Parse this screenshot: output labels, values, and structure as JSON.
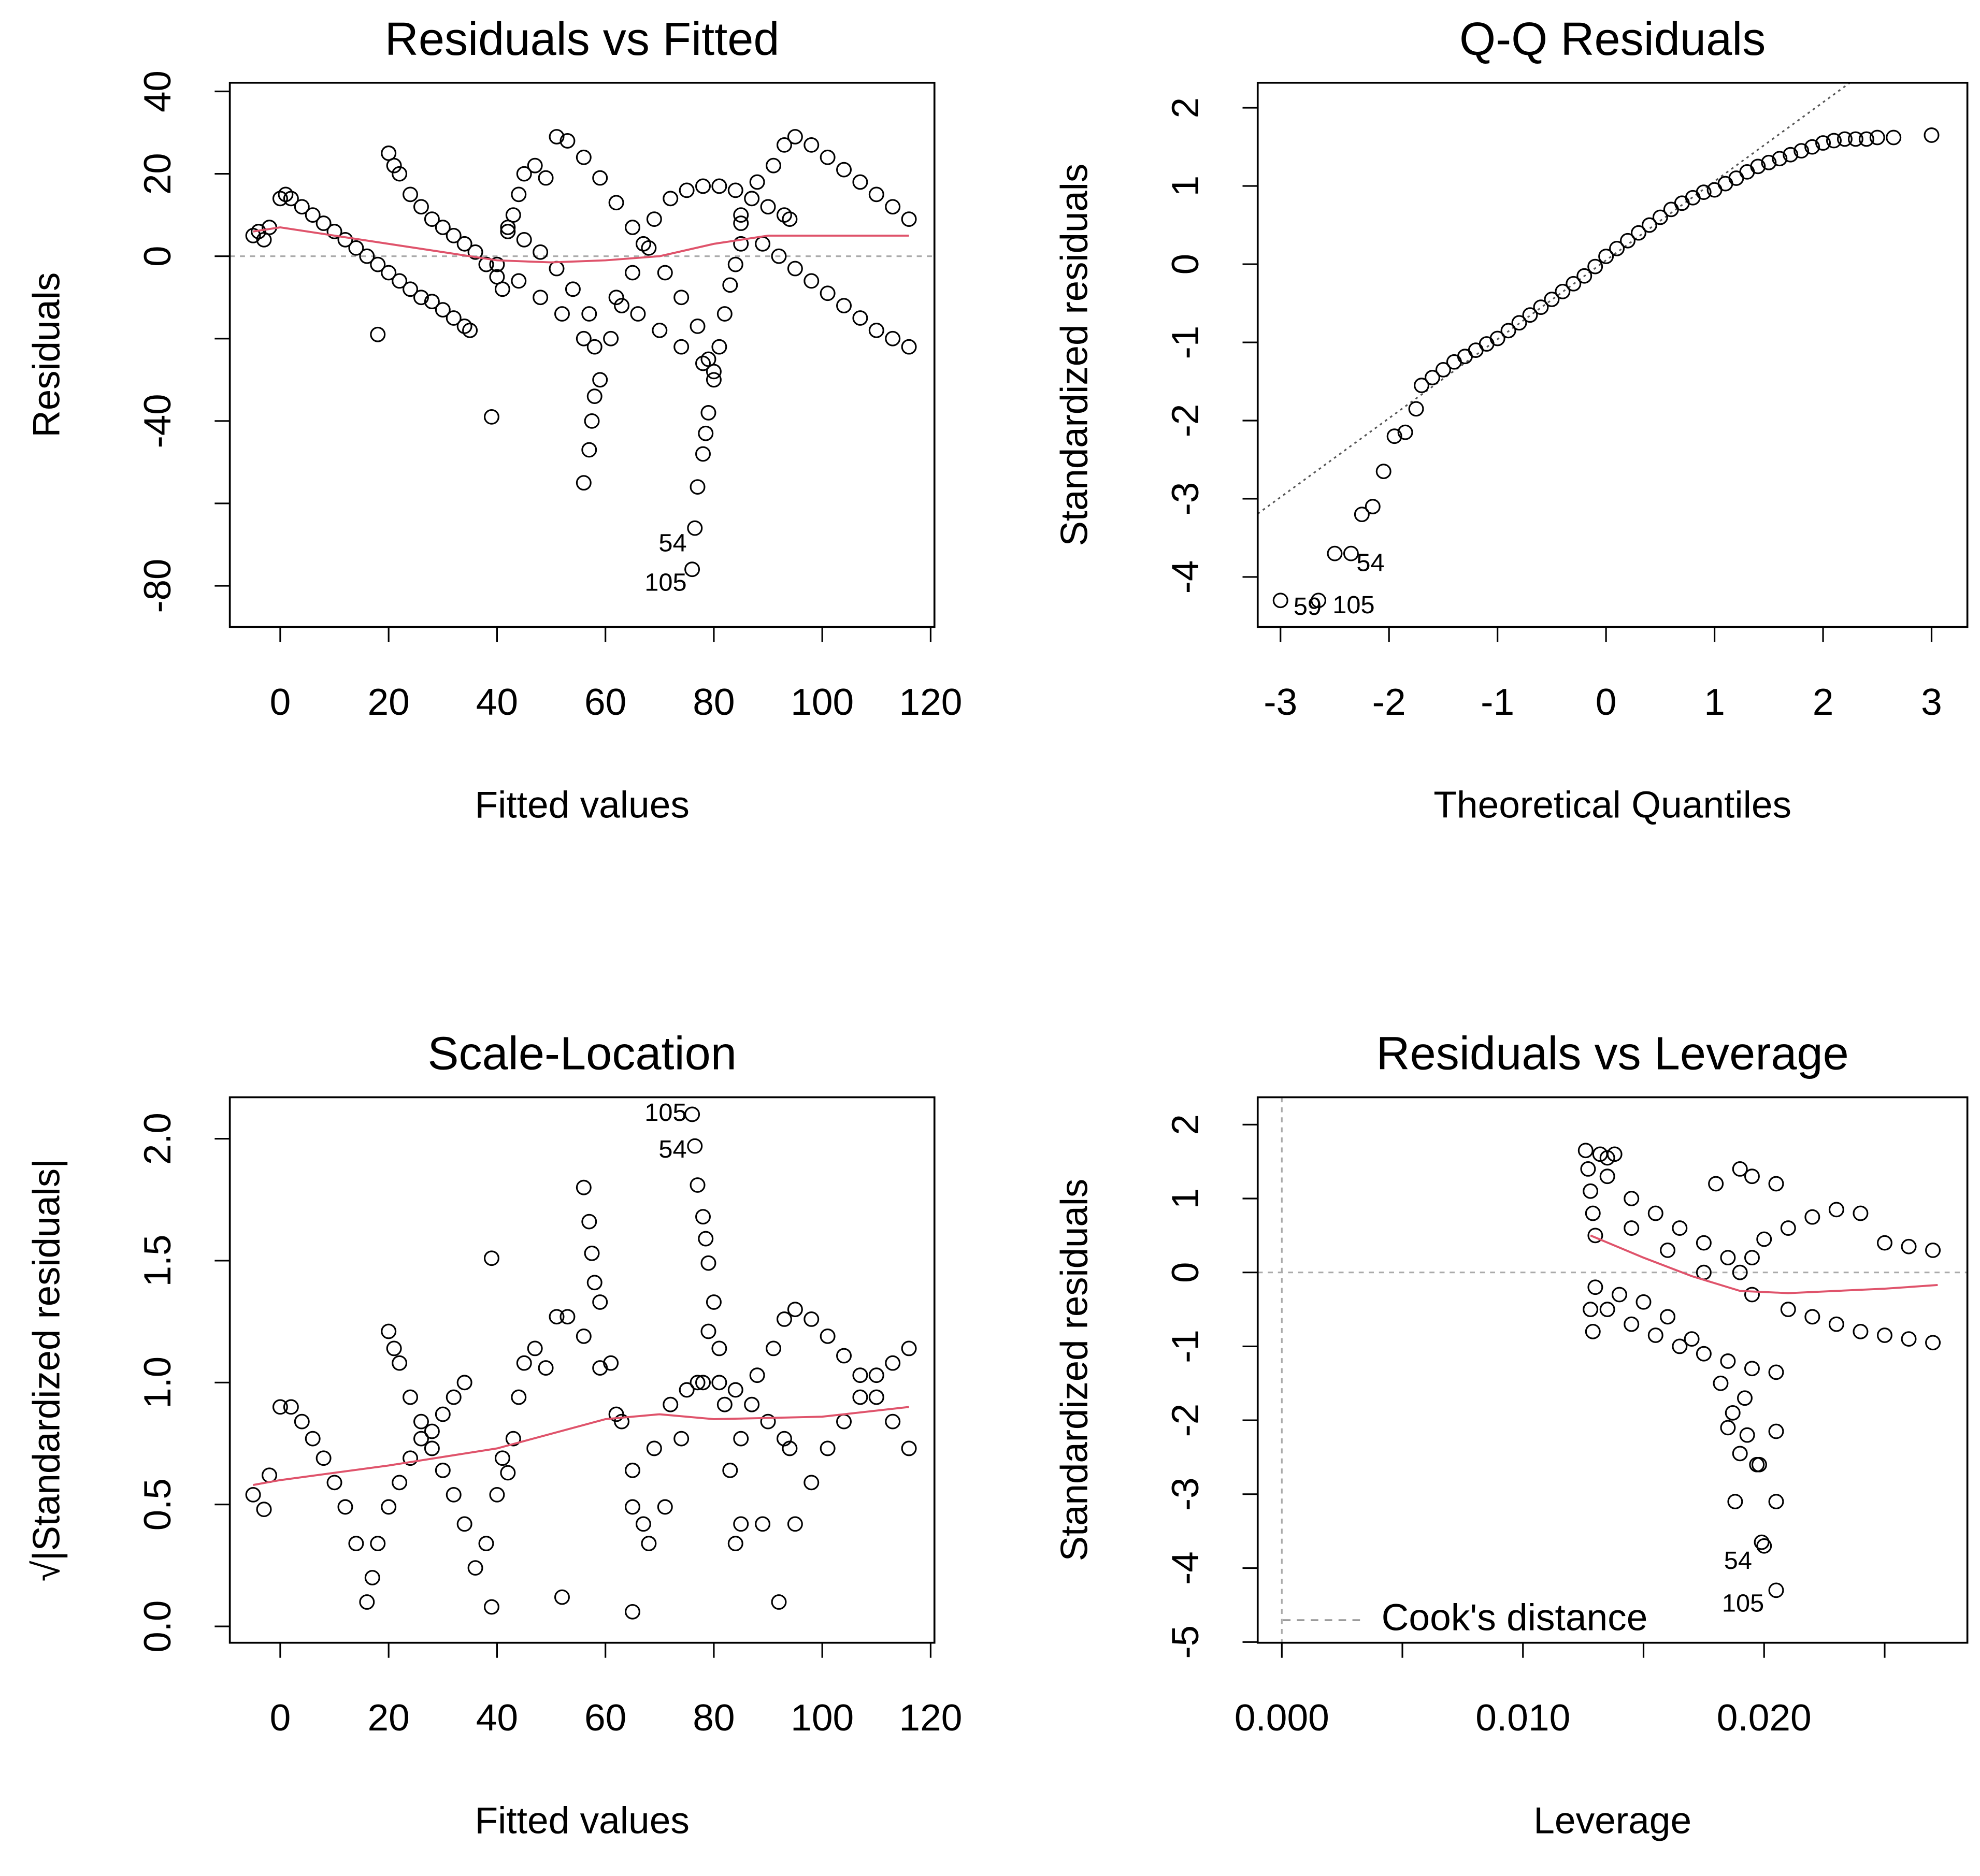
{
  "chart_data": [
    {
      "type": "scatter",
      "title": "Residuals vs Fitted",
      "xlabel": "Fitted values",
      "ylabel": "Residuals",
      "color": "#000000",
      "xlim": [
        -9.3,
        120.7
      ],
      "ylim": [
        -90,
        42.1
      ],
      "xticks": [
        0,
        20,
        40,
        60,
        80,
        100,
        120
      ],
      "yticks": [
        -80,
        -40,
        0,
        20,
        40
      ],
      "minor_yticks": [
        -60,
        -20
      ],
      "hline": 0,
      "annotation_anchor": "end",
      "annotations": [
        {
          "text": "54",
          "x": 75,
          "y": -70
        },
        {
          "text": "105",
          "x": 75,
          "y": -79.6
        }
      ],
      "smooth": {
        "color": "#df536b",
        "x": [
          -5,
          0,
          10,
          20,
          30,
          40,
          50,
          60,
          70,
          80,
          90,
          100,
          116
        ],
        "values": [
          6,
          7,
          5,
          3,
          1,
          -1,
          -1.5,
          -1,
          0,
          3,
          5,
          5,
          5
        ]
      },
      "x": [
        -5,
        -4,
        -3,
        -2,
        0,
        1,
        2,
        4,
        6,
        8,
        10,
        12,
        14,
        16,
        18,
        20,
        22,
        24,
        26,
        28,
        30,
        32,
        34,
        35,
        18,
        20,
        21,
        22,
        24,
        26,
        28,
        30,
        32,
        34,
        36,
        38,
        39,
        40,
        41,
        42,
        43,
        44,
        45,
        47,
        49,
        42,
        45,
        48,
        51,
        54,
        57,
        58,
        40,
        44,
        48,
        52,
        56,
        51,
        53,
        56,
        59,
        62,
        65,
        68,
        71,
        74,
        77,
        79,
        62,
        66,
        70,
        74,
        78,
        80,
        56,
        57,
        57.5,
        58,
        59,
        61,
        63,
        65,
        67,
        69,
        72,
        75,
        78,
        81,
        84,
        87,
        90,
        93,
        94,
        76,
        76.5,
        77,
        78,
        78.5,
        79,
        80,
        81,
        82,
        83,
        84,
        85,
        85,
        88,
        91,
        93,
        95,
        98,
        101,
        104,
        107,
        110,
        113,
        116,
        85,
        89,
        92,
        95,
        98,
        101,
        104,
        107,
        110,
        113,
        116
      ],
      "values": [
        5,
        6,
        4,
        7,
        14,
        15,
        14,
        12,
        10,
        8,
        6,
        4,
        2,
        0,
        -2,
        -4,
        -6,
        -8,
        -10,
        -11,
        -13,
        -15,
        -17,
        -18,
        -19,
        25,
        22,
        20,
        15,
        12,
        9,
        7,
        5,
        3,
        1,
        -2,
        -39,
        -5,
        -8,
        6,
        10,
        15,
        20,
        22,
        19,
        7,
        4,
        1,
        -3,
        -8,
        -14,
        -22,
        -2,
        -6,
        -10,
        -14,
        -20,
        29,
        28,
        24,
        19,
        13,
        7,
        2,
        -4,
        -10,
        -17,
        -25,
        -10,
        -14,
        -18,
        -22,
        -26,
        -28,
        -55,
        -47,
        -40,
        -34,
        -30,
        -20,
        -12,
        -4,
        3,
        9,
        14,
        16,
        17,
        17,
        16,
        14,
        12,
        10,
        9,
        -76,
        -66,
        -56,
        -48,
        -43,
        -38,
        -30,
        -22,
        -14,
        -7,
        -2,
        3,
        10,
        18,
        22,
        27,
        29,
        27,
        24,
        21,
        18,
        15,
        12,
        9,
        8,
        3,
        0,
        -3,
        -6,
        -9,
        -12,
        -15,
        -18,
        -20,
        -22
      ]
    },
    {
      "type": "scatter",
      "title": "Q-Q Residuals",
      "xlabel": "Theoretical Quantiles",
      "ylabel": "Standardized residuals",
      "color": "#000000",
      "xlim": [
        -3.21,
        3.33
      ],
      "ylim": [
        -4.64,
        2.32
      ],
      "xticks": [
        -3,
        -2,
        -1,
        0,
        1,
        2,
        3
      ],
      "yticks": [
        -4,
        -3,
        -2,
        -1,
        0,
        1,
        2
      ],
      "qq_line": {
        "intercept": 0.05,
        "slope": 1.01
      },
      "annotation_anchor": "start",
      "annotations": [
        {
          "text": "54",
          "x": -2.3,
          "y": -3.84
        },
        {
          "text": "59",
          "x": -2.88,
          "y": -4.4
        },
        {
          "text": "105",
          "x": -2.52,
          "y": -4.38
        }
      ],
      "x": [
        -3,
        -2.65,
        -2.5,
        -2.35,
        -2.25,
        -2.15,
        -2.05,
        -1.95,
        -1.85,
        -1.75,
        -1.7,
        -1.6,
        -1.5,
        -1.4,
        -1.3,
        -1.2,
        -1.1,
        -1,
        -0.9,
        -0.8,
        -0.7,
        -0.6,
        -0.5,
        -0.4,
        -0.3,
        -0.2,
        -0.1,
        0,
        0.1,
        0.2,
        0.3,
        0.4,
        0.5,
        0.6,
        0.7,
        0.8,
        0.9,
        1,
        1.1,
        1.2,
        1.3,
        1.4,
        1.5,
        1.6,
        1.7,
        1.8,
        1.9,
        2,
        2.1,
        2.2,
        2.3,
        2.4,
        2.5,
        2.65,
        3
      ],
      "values": [
        -4.3,
        -4.3,
        -3.7,
        -3.7,
        -3.2,
        -3.1,
        -2.65,
        -2.2,
        -2.15,
        -1.85,
        -1.55,
        -1.45,
        -1.35,
        -1.25,
        -1.18,
        -1.1,
        -1.02,
        -0.95,
        -0.85,
        -0.75,
        -0.65,
        -0.55,
        -0.45,
        -0.35,
        -0.25,
        -0.15,
        -0.03,
        0.1,
        0.2,
        0.3,
        0.4,
        0.5,
        0.6,
        0.7,
        0.78,
        0.85,
        0.92,
        0.95,
        1.03,
        1.1,
        1.18,
        1.25,
        1.3,
        1.35,
        1.4,
        1.45,
        1.5,
        1.55,
        1.58,
        1.6,
        1.6,
        1.6,
        1.62,
        1.62,
        1.65
      ]
    },
    {
      "type": "scatter",
      "title": "Scale-Location",
      "xlabel": "Fitted values",
      "ylabel": "√|Standardized residuals|",
      "color": "#000000",
      "xlim": [
        -9.3,
        120.7
      ],
      "ylim": [
        -0.067,
        2.17
      ],
      "xticks": [
        0,
        20,
        40,
        60,
        80,
        100,
        120
      ],
      "yticks": [
        {
          "value": 0,
          "label": "0.0"
        },
        0.5,
        {
          "value": 1,
          "label": "1.0"
        },
        1.5,
        {
          "value": 2,
          "label": "2.0"
        }
      ],
      "annotation_anchor": "end",
      "annotations": [
        {
          "text": "105",
          "x": 75,
          "y": 2.1
        },
        {
          "text": "54",
          "x": 75,
          "y": 1.95
        }
      ],
      "smooth": {
        "color": "#df536b",
        "x": [
          -5,
          0,
          20,
          40,
          60,
          70,
          80,
          100,
          116
        ],
        "values": [
          0.58,
          0.6,
          0.66,
          0.73,
          0.85,
          0.87,
          0.85,
          0.86,
          0.9
        ]
      },
      "x": [
        -5,
        -3,
        -2,
        0,
        2,
        4,
        6,
        8,
        10,
        12,
        14,
        16,
        18,
        20,
        22,
        24,
        26,
        28,
        30,
        32,
        34,
        17,
        20,
        21,
        22,
        24,
        26,
        28,
        30,
        32,
        34,
        36,
        38,
        39,
        40,
        41,
        42,
        43,
        44,
        45,
        47,
        49,
        51,
        53,
        56,
        59,
        62,
        65,
        68,
        71,
        74,
        77,
        79,
        56,
        57,
        57.5,
        58,
        59,
        61,
        63,
        65,
        67,
        69,
        72,
        75,
        78,
        81,
        84,
        87,
        90,
        93,
        94,
        76,
        76.5,
        77,
        78,
        78.5,
        79,
        80,
        81,
        82,
        83,
        84,
        85,
        85,
        88,
        91,
        93,
        95,
        98,
        101,
        104,
        107,
        110,
        113,
        116,
        89,
        92,
        95,
        98,
        101,
        104,
        107,
        110,
        113,
        116,
        65,
        39,
        52
      ],
      "values": [
        0.54,
        0.48,
        0.62,
        0.9,
        0.9,
        0.84,
        0.77,
        0.69,
        0.59,
        0.49,
        0.34,
        0.1,
        0.34,
        0.49,
        0.59,
        0.69,
        0.77,
        0.8,
        0.87,
        0.94,
        1.0,
        0.2,
        1.21,
        1.14,
        1.08,
        0.94,
        0.84,
        0.73,
        0.64,
        0.54,
        0.42,
        0.24,
        0.34,
        1.51,
        0.54,
        0.69,
        0.63,
        0.77,
        0.94,
        1.08,
        1.14,
        1.06,
        1.27,
        1.27,
        1.19,
        1.06,
        0.87,
        0.64,
        0.34,
        0.49,
        0.77,
        1.0,
        1.21,
        1.8,
        1.66,
        1.53,
        1.41,
        1.33,
        1.08,
        0.84,
        0.49,
        0.42,
        0.73,
        0.91,
        0.97,
        1.0,
        1.0,
        0.97,
        0.91,
        0.84,
        0.77,
        0.73,
        2.1,
        1.97,
        1.81,
        1.68,
        1.59,
        1.49,
        1.33,
        1.14,
        0.91,
        0.64,
        0.34,
        0.42,
        0.77,
        1.03,
        1.14,
        1.26,
        1.3,
        1.26,
        1.19,
        1.11,
        1.03,
        0.94,
        0.84,
        0.73,
        0.42,
        0.1,
        0.42,
        0.59,
        0.73,
        0.84,
        0.94,
        1.03,
        1.08,
        1.14,
        0.06,
        0.08,
        0.12
      ]
    },
    {
      "type": "scatter",
      "title": "Residuals vs Leverage",
      "xlabel": "Leverage",
      "ylabel": "Standardized residuals",
      "color": "#000000",
      "xlim": [
        -0.001,
        0.02843
      ],
      "ylim": [
        -5.01,
        2.37
      ],
      "xticks": [
        {
          "value": 0,
          "label": "0.000"
        },
        {
          "value": 0.01,
          "label": "0.010"
        },
        {
          "value": 0.02,
          "label": "0.020"
        }
      ],
      "minor_xticks": [
        0.005,
        0.015,
        0.025
      ],
      "yticks": [
        -5,
        -4,
        -3,
        -2,
        -1,
        0,
        1,
        2
      ],
      "hline": 0,
      "vline": 0,
      "annotation_anchor": "end",
      "annotations": [
        {
          "text": "54",
          "x": 0.0195,
          "y": -3.92
        },
        {
          "text": "105",
          "x": 0.02,
          "y": -4.5
        }
      ],
      "legend": {
        "label": "Cook's distance",
        "position": "bottomleft",
        "color": "#999999"
      },
      "smooth": {
        "color": "#df536b",
        "x": [
          0.0128,
          0.015,
          0.017,
          0.019,
          0.021,
          0.025,
          0.0272
        ],
        "values": [
          0.5,
          0.2,
          -0.05,
          -0.25,
          -0.28,
          -0.22,
          -0.17
        ]
      },
      "x": [
        0.0126,
        0.0127,
        0.0128,
        0.0129,
        0.013,
        0.013,
        0.0128,
        0.0129,
        0.0132,
        0.0135,
        0.0138,
        0.0135,
        0.0145,
        0.0155,
        0.0165,
        0.0175,
        0.0185,
        0.019,
        0.0145,
        0.016,
        0.0175,
        0.0135,
        0.0145,
        0.0155,
        0.0165,
        0.0175,
        0.0185,
        0.0195,
        0.0205,
        0.014,
        0.015,
        0.016,
        0.017,
        0.0195,
        0.02,
        0.021,
        0.022,
        0.023,
        0.024,
        0.025,
        0.026,
        0.027,
        0.0195,
        0.021,
        0.022,
        0.023,
        0.024,
        0.025,
        0.026,
        0.027,
        0.018,
        0.019,
        0.0195,
        0.0205,
        0.0182,
        0.0185,
        0.019,
        0.0193,
        0.0197,
        0.0198,
        0.0205,
        0.0188,
        0.0205,
        0.0199,
        0.02,
        0.0205,
        0.0192,
        0.0187
      ],
      "values": [
        1.65,
        1.4,
        1.1,
        0.8,
        0.5,
        -0.2,
        -0.5,
        -0.8,
        1.6,
        1.55,
        1.6,
        1.3,
        1.0,
        0.8,
        0.6,
        0.4,
        0.2,
        0.0,
        0.6,
        0.3,
        0.0,
        -0.5,
        -0.7,
        -0.85,
        -1.0,
        -1.1,
        -1.2,
        -1.3,
        -1.35,
        -0.3,
        -0.4,
        -0.6,
        -0.9,
        0.2,
        0.45,
        0.6,
        0.75,
        0.85,
        0.8,
        0.4,
        0.35,
        0.3,
        -0.3,
        -0.5,
        -0.6,
        -0.7,
        -0.8,
        -0.85,
        -0.9,
        -0.95,
        1.2,
        1.4,
        1.3,
        1.2,
        -1.5,
        -2.1,
        -2.45,
        -2.2,
        -2.6,
        -2.6,
        -2.15,
        -3.1,
        -3.1,
        -3.65,
        -3.7,
        -4.3,
        -1.7,
        -1.9
      ]
    }
  ]
}
